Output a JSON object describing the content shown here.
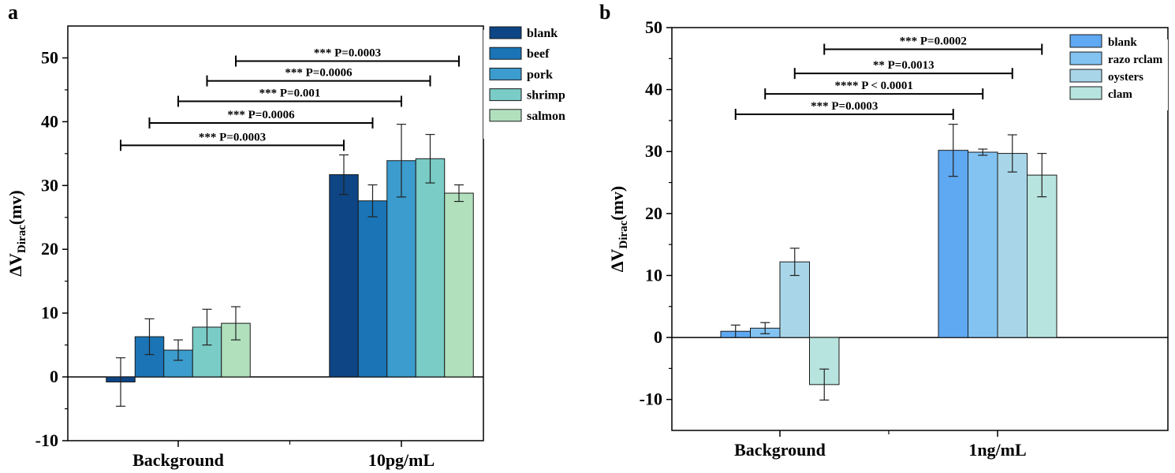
{
  "chart_data": [
    {
      "panel_label": "a",
      "type": "bar",
      "categories": [
        "Background",
        "10pg/mL"
      ],
      "series": [
        {
          "name": "blank",
          "color": "#0d4585",
          "values": [
            -0.8,
            31.7
          ],
          "errors": [
            3.8,
            3.1
          ]
        },
        {
          "name": "beef",
          "color": "#1a74b5",
          "values": [
            6.3,
            27.6
          ],
          "errors": [
            2.8,
            2.5
          ]
        },
        {
          "name": "pork",
          "color": "#3b9ccd",
          "values": [
            4.2,
            33.9
          ],
          "errors": [
            1.6,
            5.7
          ]
        },
        {
          "name": "shrimp",
          "color": "#7accc6",
          "values": [
            7.8,
            34.2
          ],
          "errors": [
            2.8,
            3.8
          ]
        },
        {
          "name": "salmon",
          "color": "#b1e0bd",
          "values": [
            8.4,
            28.8
          ],
          "errors": [
            2.6,
            1.3
          ]
        }
      ],
      "ylabel_main": "ΔV",
      "ylabel_sub": "Dirac",
      "ylabel_unit": "(mv)",
      "ylim": [
        -10,
        55
      ],
      "yticks": [
        -10,
        0,
        10,
        20,
        30,
        40,
        50
      ],
      "ytick_labels": [
        "-10",
        "0",
        "10",
        "20",
        "30",
        "40",
        "50"
      ],
      "legend_position": "top-right",
      "annotations": [
        {
          "text": "*** P=0.0003",
          "from": [
            0,
            0
          ],
          "to": [
            1,
            0
          ],
          "y": 36.3
        },
        {
          "text": "*** P=0.0006",
          "from": [
            0,
            1
          ],
          "to": [
            1,
            1
          ],
          "y": 39.8
        },
        {
          "text": "*** P=0.001",
          "from": [
            0,
            2
          ],
          "to": [
            1,
            2
          ],
          "y": 43.2
        },
        {
          "text": "*** P=0.0006",
          "from": [
            0,
            3
          ],
          "to": [
            1,
            3
          ],
          "y": 46.4
        },
        {
          "text": "*** P=0.0003",
          "from": [
            0,
            4
          ],
          "to": [
            1,
            4
          ],
          "y": 49.5
        }
      ]
    },
    {
      "panel_label": "b",
      "type": "bar",
      "categories": [
        "Background",
        "1ng/mL"
      ],
      "series": [
        {
          "name": "blank",
          "color": "#5fa8f2",
          "values": [
            1.0,
            30.2
          ],
          "errors": [
            1.0,
            4.2
          ]
        },
        {
          "name": "razo rclam",
          "color": "#82c3f2",
          "values": [
            1.5,
            29.9
          ],
          "errors": [
            0.9,
            0.5
          ]
        },
        {
          "name": "oysters",
          "color": "#a8d6e8",
          "values": [
            12.2,
            29.7
          ],
          "errors": [
            2.2,
            3.0
          ]
        },
        {
          "name": "clam",
          "color": "#b7e4de",
          "values": [
            -7.6,
            26.2
          ],
          "errors": [
            2.5,
            3.5
          ]
        }
      ],
      "ylabel_main": "ΔV",
      "ylabel_sub": "Dirac",
      "ylabel_unit": "(mv)",
      "ylim": [
        -15,
        50
      ],
      "yticks": [
        -10,
        0,
        10,
        20,
        30,
        40,
        50
      ],
      "ytick_labels": [
        "-10",
        "0",
        "10",
        "20",
        "30",
        "40",
        "50"
      ],
      "legend_position": "top-right",
      "annotations": [
        {
          "text": "*** P=0.0003",
          "from": [
            0,
            0
          ],
          "to": [
            1,
            0
          ],
          "y": 36.0
        },
        {
          "text": "**** P < 0.0001",
          "from": [
            0,
            1
          ],
          "to": [
            1,
            1
          ],
          "y": 39.3
        },
        {
          "text": "** P=0.0013",
          "from": [
            0,
            2
          ],
          "to": [
            1,
            2
          ],
          "y": 42.6
        },
        {
          "text": "*** P=0.0002",
          "from": [
            0,
            3
          ],
          "to": [
            1,
            3
          ],
          "y": 46.5
        }
      ]
    }
  ]
}
